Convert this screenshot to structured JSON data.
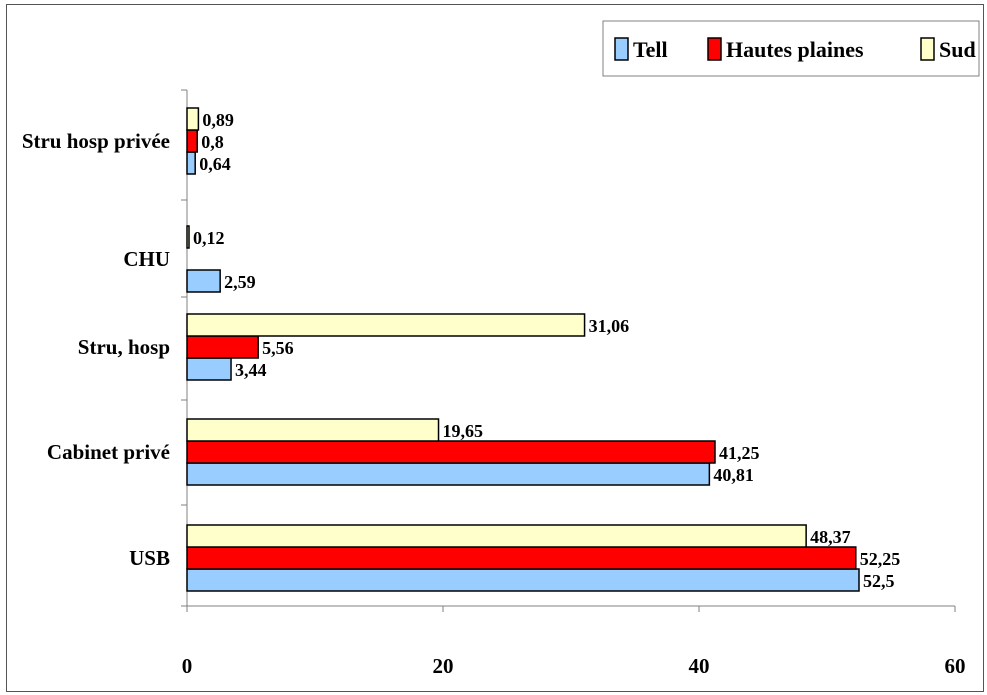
{
  "chart_data": {
    "type": "bar",
    "orientation": "horizontal",
    "categories": [
      "USB",
      "Cabinet privé",
      "Stru, hosp",
      "CHU",
      "Stru hosp privée"
    ],
    "series": [
      {
        "name": "Tell",
        "color": "#99ccff",
        "values": [
          52.5,
          40.81,
          3.44,
          2.59,
          0.64
        ],
        "labels": [
          "52,5",
          "40,81",
          "3,44",
          "2,59",
          "0,64"
        ]
      },
      {
        "name": "Hautes plaines",
        "color": "#ff0000",
        "values": [
          52.25,
          41.25,
          5.56,
          0,
          0.8
        ],
        "labels": [
          "52,25",
          "41,25",
          "5,56",
          "",
          "0,8"
        ]
      },
      {
        "name": "Sud",
        "color": "#ffffcc",
        "values": [
          48.37,
          19.65,
          31.06,
          0.12,
          0.89
        ],
        "labels": [
          "48,37",
          "19,65",
          "31,06",
          "0,12",
          "0,89"
        ]
      }
    ],
    "xlim": [
      0,
      60
    ],
    "xticks": [
      0,
      20,
      40,
      60
    ],
    "xtick_labels": [
      "0",
      "20",
      "40",
      "60"
    ],
    "grid": false,
    "legend_position": "top-right"
  }
}
